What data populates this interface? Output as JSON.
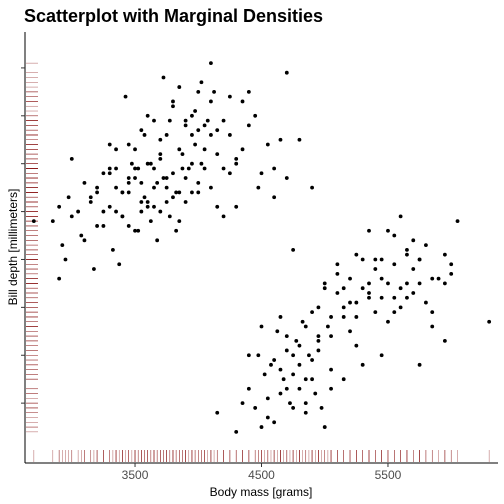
{
  "chart_data": {
    "type": "scatter",
    "title": "Scatterplot with Marginal Densities",
    "xlabel": "Body mass [grams]",
    "ylabel": "Bill depth [millimeters]",
    "xlim": [
      2630,
      6370
    ],
    "ylim": [
      12.75,
      21.75
    ],
    "x_ticks": [
      3500,
      4500,
      5500
    ],
    "x_tick_labels": [
      "3500",
      "4500",
      "5500"
    ],
    "grid": false,
    "rug": true,
    "point_color": "#000000",
    "rug_color": "#8b1a1a",
    "points": [
      [
        2700,
        17.8
      ],
      [
        2850,
        17.8
      ],
      [
        2900,
        18.1
      ],
      [
        2900,
        16.6
      ],
      [
        2925,
        17.3
      ],
      [
        2950,
        17.0
      ],
      [
        2975,
        18.3
      ],
      [
        3000,
        17.9
      ],
      [
        3050,
        18.0
      ],
      [
        3075,
        17.5
      ],
      [
        3100,
        17.4
      ],
      [
        3150,
        18.2
      ],
      [
        3175,
        16.8
      ],
      [
        3200,
        17.7
      ],
      [
        3250,
        18.8
      ],
      [
        3300,
        19.4
      ],
      [
        3325,
        17.2
      ],
      [
        3350,
        18.5
      ],
      [
        3375,
        16.9
      ],
      [
        3400,
        17.9
      ],
      [
        3425,
        20.4
      ],
      [
        3450,
        18.6
      ],
      [
        3475,
        19.0
      ],
      [
        3500,
        17.6
      ],
      [
        3525,
        17.6
      ],
      [
        3550,
        18.2
      ],
      [
        3575,
        19.6
      ],
      [
        3600,
        18.1
      ],
      [
        3625,
        17.8
      ],
      [
        3650,
        18.5
      ],
      [
        3675,
        17.4
      ],
      [
        3700,
        19.1
      ],
      [
        3725,
        20.8
      ],
      [
        3750,
        18.7
      ],
      [
        3775,
        19.9
      ],
      [
        3800,
        18.3
      ],
      [
        3825,
        17.6
      ],
      [
        3850,
        20.6
      ],
      [
        3875,
        18.9
      ],
      [
        3900,
        19.8
      ],
      [
        3950,
        20.0
      ],
      [
        3975,
        19.4
      ],
      [
        4000,
        18.4
      ],
      [
        4025,
        20.7
      ],
      [
        4050,
        19.3
      ],
      [
        4100,
        21.1
      ],
      [
        4150,
        19.2
      ],
      [
        4200,
        18.9
      ],
      [
        4250,
        20.4
      ],
      [
        4300,
        19.0
      ],
      [
        4350,
        20.3
      ],
      [
        4400,
        19.8
      ],
      [
        4475,
        18.5
      ],
      [
        4500,
        18.8
      ],
      [
        4550,
        19.4
      ],
      [
        4600,
        18.9
      ],
      [
        4650,
        19.5
      ],
      [
        4700,
        20.9
      ],
      [
        3000,
        19.1
      ],
      [
        3100,
        18.6
      ],
      [
        3200,
        18.5
      ],
      [
        3250,
        18.0
      ],
      [
        3300,
        18.9
      ],
      [
        3350,
        18.0
      ],
      [
        3400,
        18.4
      ],
      [
        3450,
        19.4
      ],
      [
        3500,
        18.9
      ],
      [
        3550,
        19.7
      ],
      [
        3600,
        19.0
      ],
      [
        3650,
        19.9
      ],
      [
        3700,
        18.0
      ],
      [
        3750,
        19.6
      ],
      [
        3800,
        18.8
      ],
      [
        3850,
        19.3
      ],
      [
        3900,
        18.7
      ],
      [
        3950,
        18.4
      ],
      [
        4000,
        19.7
      ],
      [
        4100,
        19.6
      ],
      [
        4200,
        19.9
      ],
      [
        4300,
        18.1
      ],
      [
        3400,
        17.9
      ],
      [
        3450,
        18.7
      ],
      [
        3525,
        18.9
      ],
      [
        3575,
        18.3
      ],
      [
        3625,
        19.0
      ],
      [
        3675,
        18.6
      ],
      [
        3725,
        18.7
      ],
      [
        3775,
        17.9
      ],
      [
        3825,
        18.4
      ],
      [
        3875,
        19.2
      ],
      [
        3925,
        18.9
      ],
      [
        3975,
        20.1
      ],
      [
        4025,
        19.0
      ],
      [
        4075,
        19.9
      ],
      [
        4125,
        20.5
      ],
      [
        3200,
        18.4
      ],
      [
        3300,
        18.1
      ],
      [
        3400,
        18.4
      ],
      [
        3500,
        19.3
      ],
      [
        3600,
        18.2
      ],
      [
        3700,
        19.5
      ],
      [
        3800,
        20.2
      ],
      [
        3900,
        18.2
      ],
      [
        4000,
        18.6
      ],
      [
        4100,
        18.5
      ],
      [
        4200,
        17.9
      ],
      [
        4350,
        19.3
      ],
      [
        4600,
        18.3
      ],
      [
        3350,
        18.9
      ],
      [
        3450,
        18.4
      ],
      [
        3550,
        18.0
      ],
      [
        3650,
        18.1
      ],
      [
        3750,
        18.2
      ],
      [
        3850,
        18.4
      ],
      [
        3950,
        19.6
      ],
      [
        4050,
        19.8
      ],
      [
        4150,
        18.1
      ],
      [
        4250,
        18.8
      ],
      [
        4450,
        20.0
      ],
      [
        4800,
        19.5
      ],
      [
        3150,
        18.3
      ],
      [
        3250,
        17.7
      ],
      [
        3350,
        19.3
      ],
      [
        3450,
        17.7
      ],
      [
        3550,
        18.6
      ],
      [
        3650,
        18.9
      ],
      [
        3750,
        18.5
      ],
      [
        3850,
        17.8
      ],
      [
        3950,
        19.0
      ],
      [
        4050,
        18.9
      ],
      [
        4150,
        19.7
      ],
      [
        4250,
        19.6
      ],
      [
        3300,
        18.8
      ],
      [
        3500,
        18.7
      ],
      [
        3700,
        19.2
      ],
      [
        3900,
        19.9
      ],
      [
        4100,
        20.3
      ],
      [
        4300,
        19.1
      ],
      [
        3600,
        20.0
      ],
      [
        3800,
        20.3
      ],
      [
        4000,
        20.5
      ],
      [
        4400,
        20.5
      ],
      [
        4700,
        18.7
      ],
      [
        4900,
        18.5
      ],
      [
        4750,
        17.2
      ],
      [
        4150,
        13.8
      ],
      [
        4300,
        13.4
      ],
      [
        4350,
        14.0
      ],
      [
        4400,
        14.3
      ],
      [
        4450,
        13.9
      ],
      [
        4475,
        15.0
      ],
      [
        4500,
        13.5
      ],
      [
        4525,
        14.6
      ],
      [
        4550,
        14.1
      ],
      [
        4575,
        14.8
      ],
      [
        4600,
        13.6
      ],
      [
        4625,
        15.5
      ],
      [
        4650,
        14.2
      ],
      [
        4675,
        14.5
      ],
      [
        4700,
        15.1
      ],
      [
        4725,
        14.0
      ],
      [
        4750,
        13.9
      ],
      [
        4775,
        15.3
      ],
      [
        4800,
        14.3
      ],
      [
        4825,
        15.7
      ],
      [
        4850,
        14.5
      ],
      [
        4875,
        15.0
      ],
      [
        4900,
        14.9
      ],
      [
        4925,
        14.2
      ],
      [
        4950,
        15.4
      ],
      [
        4975,
        13.9
      ],
      [
        5000,
        13.5
      ],
      [
        5025,
        15.6
      ],
      [
        5050,
        14.7
      ],
      [
        5100,
        16.3
      ],
      [
        5150,
        15.8
      ],
      [
        5200,
        16.1
      ],
      [
        5250,
        15.2
      ],
      [
        5300,
        14.8
      ],
      [
        5350,
        16.5
      ],
      [
        5400,
        15.9
      ],
      [
        5450,
        16.2
      ],
      [
        5500,
        15.7
      ],
      [
        5550,
        16.9
      ],
      [
        5600,
        16.4
      ],
      [
        5650,
        17.2
      ],
      [
        5700,
        16.8
      ],
      [
        5750,
        17.0
      ],
      [
        5800,
        16.1
      ],
      [
        5850,
        15.6
      ],
      [
        5900,
        16.6
      ],
      [
        5950,
        17.1
      ],
      [
        6000,
        16.9
      ],
      [
        6050,
        17.8
      ],
      [
        6300,
        15.7
      ],
      [
        4700,
        14.3
      ],
      [
        4800,
        15.2
      ],
      [
        4850,
        15.6
      ],
      [
        4900,
        15.9
      ],
      [
        4950,
        16.0
      ],
      [
        5000,
        16.4
      ],
      [
        5050,
        15.4
      ],
      [
        5100,
        16.7
      ],
      [
        5150,
        16.0
      ],
      [
        5200,
        15.5
      ],
      [
        5250,
        16.1
      ],
      [
        5300,
        17.0
      ],
      [
        5350,
        16.3
      ],
      [
        5400,
        16.8
      ],
      [
        5450,
        15.0
      ],
      [
        5500,
        16.5
      ],
      [
        5550,
        17.5
      ],
      [
        5600,
        16.0
      ],
      [
        5650,
        16.5
      ],
      [
        5700,
        17.4
      ],
      [
        5750,
        14.8
      ],
      [
        5800,
        17.3
      ],
      [
        5850,
        16.6
      ],
      [
        5950,
        15.3
      ],
      [
        4650,
        15.8
      ],
      [
        4750,
        15.0
      ],
      [
        4850,
        14.0
      ],
      [
        4950,
        15.1
      ],
      [
        5050,
        15.8
      ],
      [
        5150,
        14.5
      ],
      [
        5250,
        15.8
      ],
      [
        5350,
        17.6
      ],
      [
        5450,
        17.0
      ],
      [
        5550,
        16.2
      ],
      [
        5650,
        17.1
      ],
      [
        5750,
        16.5
      ],
      [
        5850,
        15.9
      ],
      [
        5950,
        16.5
      ],
      [
        6000,
        16.7
      ],
      [
        4400,
        15.0
      ],
      [
        4500,
        15.6
      ],
      [
        4600,
        14.9
      ],
      [
        4700,
        15.4
      ],
      [
        4800,
        14.8
      ],
      [
        4900,
        14.5
      ],
      [
        5000,
        16.5
      ],
      [
        5100,
        16.9
      ],
      [
        5200,
        16.6
      ],
      [
        5300,
        16.4
      ],
      [
        5400,
        17.0
      ],
      [
        5500,
        17.6
      ],
      [
        5600,
        17.9
      ],
      [
        5700,
        16.3
      ],
      [
        4550,
        13.7
      ],
      [
        4650,
        14.7
      ],
      [
        4750,
        14.6
      ],
      [
        4850,
        13.8
      ],
      [
        4950,
        15.3
      ],
      [
        5050,
        14.3
      ],
      [
        5150,
        16.4
      ],
      [
        5250,
        17.1
      ],
      [
        5350,
        16.2
      ],
      [
        5450,
        16.6
      ],
      [
        5550,
        15.9
      ],
      [
        5650,
        16.2
      ],
      [
        5750,
        17.0
      ]
    ]
  }
}
